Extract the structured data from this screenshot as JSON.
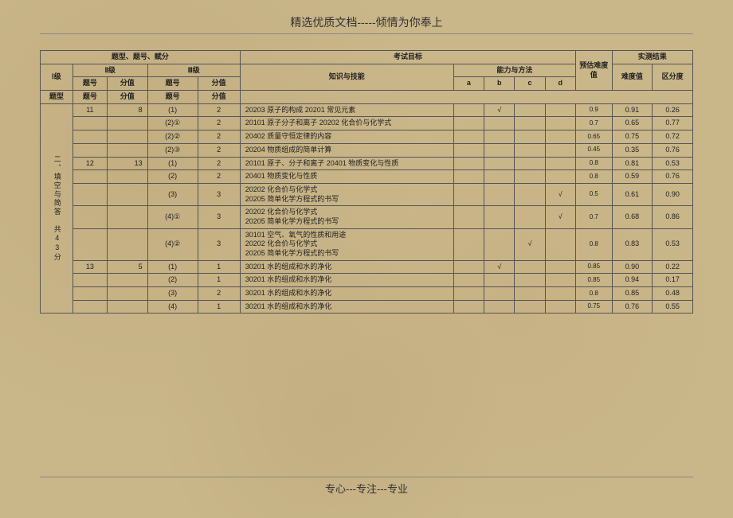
{
  "header": "精选优质文档-----倾情为你奉上",
  "footer": "专心---专注---专业",
  "thead": {
    "group_type": "题型、题号、赋分",
    "group_goal": "考试目标",
    "pred": "预估难度值",
    "result": "实测结果",
    "l1": "Ⅰ级",
    "l2": "Ⅱ级",
    "l3": "Ⅲ级",
    "knowledge": "知识与技能",
    "ability": "能力与方法",
    "diff": "难度值",
    "disc": "区分度",
    "qtype": "题型",
    "qno": "题号",
    "score": "分值",
    "qno2": "题号",
    "score2": "分值",
    "a": "a",
    "b": "b",
    "c": "c",
    "d": "d"
  },
  "section_label": "二、填空与简答　共43分",
  "rows": [
    {
      "l2no": "11",
      "l2score": "8",
      "l3no": "(1)",
      "l3score": "2",
      "know": "20203 原子的构成 20201 常见元素",
      "a": "",
      "b": "√",
      "c": "",
      "d": "",
      "pred": "0.9",
      "diff": "0.91",
      "disc": "0.26"
    },
    {
      "l2no": "",
      "l2score": "",
      "l3no": "(2)①",
      "l3score": "2",
      "know": "20101 原子分子和离子 20202 化合价与化学式",
      "a": "",
      "b": "",
      "c": "",
      "d": "",
      "pred": "0.7",
      "diff": "0.65",
      "disc": "0.77"
    },
    {
      "l2no": "",
      "l2score": "",
      "l3no": "(2)②",
      "l3score": "2",
      "know": "20402 质量守恒定律的内容",
      "a": "",
      "b": "",
      "c": "",
      "d": "",
      "pred": "0.65",
      "diff": "0.75",
      "disc": "0.72"
    },
    {
      "l2no": "",
      "l2score": "",
      "l3no": "(2)③",
      "l3score": "2",
      "know": "20204 物质组成的简单计算",
      "a": "",
      "b": "",
      "c": "",
      "d": "",
      "pred": "0.45",
      "diff": "0.35",
      "disc": "0.76"
    },
    {
      "l2no": "12",
      "l2score": "13",
      "l3no": "(1)",
      "l3score": "2",
      "know": "20101 原子、分子和离子 20401 物质变化与性质",
      "a": "",
      "b": "",
      "c": "",
      "d": "",
      "pred": "0.8",
      "diff": "0.81",
      "disc": "0.53"
    },
    {
      "l2no": "",
      "l2score": "",
      "l3no": "(2)",
      "l3score": "2",
      "know": "20401 物质变化与性质",
      "a": "",
      "b": "",
      "c": "",
      "d": "",
      "pred": "0.8",
      "diff": "0.59",
      "disc": "0.76"
    },
    {
      "l2no": "",
      "l2score": "",
      "l3no": "(3)",
      "l3score": "3",
      "know": "20202 化合价与化学式\n20205 简单化学方程式的书写",
      "a": "",
      "b": "",
      "c": "",
      "d": "√",
      "pred": "0.5",
      "diff": "0.61",
      "disc": "0.90"
    },
    {
      "l2no": "",
      "l2score": "",
      "l3no": "(4)①",
      "l3score": "3",
      "know": "20202 化合价与化学式\n20205 简单化学方程式的书写",
      "a": "",
      "b": "",
      "c": "",
      "d": "√",
      "pred": "0.7",
      "diff": "0.68",
      "disc": "0.86"
    },
    {
      "l2no": "",
      "l2score": "",
      "l3no": "(4)②",
      "l3score": "3",
      "know": "30101 空气、氧气的性质和用途\n20202 化合价与化学式\n20205 简单化学方程式的书写",
      "a": "",
      "b": "",
      "c": "√",
      "d": "",
      "pred": "0.8",
      "diff": "0.83",
      "disc": "0.53"
    },
    {
      "l2no": "13",
      "l2score": "5",
      "l3no": "(1)",
      "l3score": "1",
      "know": "30201 水的组成和水的净化",
      "a": "",
      "b": "√",
      "c": "",
      "d": "",
      "pred": "0.85",
      "diff": "0.90",
      "disc": "0.22"
    },
    {
      "l2no": "",
      "l2score": "",
      "l3no": "(2)",
      "l3score": "1",
      "know": "30201 水的组成和水的净化",
      "a": "",
      "b": "",
      "c": "",
      "d": "",
      "pred": "0.85",
      "diff": "0.94",
      "disc": "0.17"
    },
    {
      "l2no": "",
      "l2score": "",
      "l3no": "(3)",
      "l3score": "2",
      "know": "30201 水的组成和水的净化",
      "a": "",
      "b": "",
      "c": "",
      "d": "",
      "pred": "0.8",
      "diff": "0.85",
      "disc": "0.48"
    },
    {
      "l2no": "",
      "l2score": "",
      "l3no": "(4)",
      "l3score": "1",
      "know": "30201 水的组成和水的净化",
      "a": "",
      "b": "",
      "c": "",
      "d": "",
      "pred": "0.75",
      "diff": "0.76",
      "disc": "0.55"
    }
  ]
}
